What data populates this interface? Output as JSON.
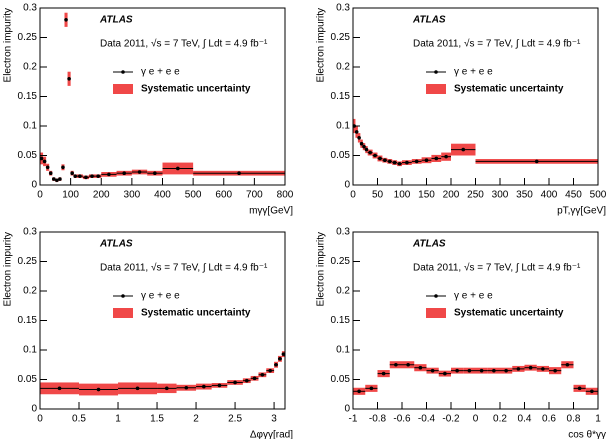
{
  "chart_data": [
    {
      "type": "histogram",
      "ylabel": "Electron impurity",
      "xlabel": "mγγ[GeV]",
      "annotations": [
        "ATLAS",
        "Data 2011, √s = 7 TeV, ∫ Ldt = 4.9 fb⁻¹"
      ],
      "bins": [
        0,
        10,
        20,
        30,
        40,
        50,
        60,
        70,
        80,
        90,
        100,
        110,
        120,
        140,
        160,
        180,
        200,
        250,
        300,
        350,
        400,
        500,
        800
      ],
      "series": [
        {
          "name": "γ e + e e",
          "color": "#000000",
          "values": [
            0.045,
            0.04,
            0.03,
            0.02,
            0.01,
            0.008,
            0.01,
            0.03,
            0.28,
            0.18,
            0.02,
            0.015,
            0.015,
            0.013,
            0.015,
            0.015,
            0.018,
            0.02,
            0.022,
            0.02,
            0.028,
            0.02
          ]
        }
      ],
      "band": {
        "name": "Systematic uncertainty",
        "color": "#f04848",
        "errors": [
          0.01,
          0.008,
          0.006,
          0.004,
          0.003,
          0.003,
          0.003,
          0.005,
          0.012,
          0.012,
          0.004,
          0.003,
          0.003,
          0.003,
          0.003,
          0.003,
          0.004,
          0.004,
          0.004,
          0.004,
          0.01,
          0.004
        ]
      },
      "xlim": [
        0,
        800
      ],
      "xticks": [
        0,
        100,
        200,
        300,
        400,
        500,
        600,
        700,
        800
      ],
      "ylim": [
        0,
        0.3
      ],
      "yticks": [
        0,
        0.05,
        0.1,
        0.15,
        0.2,
        0.25,
        0.3
      ]
    },
    {
      "type": "histogram",
      "ylabel": "Electron impurity",
      "xlabel": "pT,γγ[GeV]",
      "annotations": [
        "ATLAS",
        "Data 2011, √s = 7 TeV, ∫ Ldt = 4.9 fb⁻¹"
      ],
      "bins": [
        0,
        5,
        10,
        15,
        20,
        25,
        30,
        40,
        50,
        60,
        70,
        80,
        90,
        100,
        120,
        140,
        160,
        180,
        200,
        250,
        500
      ],
      "series": [
        {
          "name": "γ e + e e",
          "color": "#000000",
          "values": [
            0.1,
            0.09,
            0.08,
            0.07,
            0.065,
            0.06,
            0.055,
            0.05,
            0.045,
            0.042,
            0.04,
            0.038,
            0.036,
            0.038,
            0.04,
            0.042,
            0.045,
            0.048,
            0.06,
            0.04
          ]
        }
      ],
      "band": {
        "name": "Systematic uncertainty",
        "color": "#f04848",
        "errors": [
          0.012,
          0.01,
          0.008,
          0.007,
          0.006,
          0.006,
          0.005,
          0.005,
          0.005,
          0.004,
          0.004,
          0.004,
          0.004,
          0.004,
          0.004,
          0.005,
          0.006,
          0.007,
          0.01,
          0.004
        ]
      },
      "xlim": [
        0,
        500
      ],
      "xticks": [
        0,
        50,
        100,
        150,
        200,
        250,
        300,
        350,
        400,
        450,
        500
      ],
      "ylim": [
        0,
        0.3
      ],
      "yticks": [
        0,
        0.05,
        0.1,
        0.15,
        0.2,
        0.25,
        0.3
      ]
    },
    {
      "type": "histogram",
      "ylabel": "Electron impurity",
      "xlabel": "Δφγγ[rad]",
      "annotations": [
        "ATLAS",
        "Data 2011, √s = 7 TeV, ∫ Ldt = 4.9 fb⁻¹"
      ],
      "bins": [
        0,
        0.5,
        1,
        1.5,
        1.75,
        2,
        2.2,
        2.4,
        2.6,
        2.7,
        2.8,
        2.9,
        3.0,
        3.05,
        3.1,
        3.14
      ],
      "series": [
        {
          "name": "γ e + e e",
          "color": "#000000",
          "values": [
            0.035,
            0.033,
            0.035,
            0.035,
            0.036,
            0.038,
            0.04,
            0.045,
            0.048,
            0.052,
            0.058,
            0.065,
            0.075,
            0.085,
            0.093
          ]
        }
      ],
      "band": {
        "name": "Systematic uncertainty",
        "color": "#f04848",
        "errors": [
          0.01,
          0.01,
          0.01,
          0.008,
          0.005,
          0.005,
          0.004,
          0.004,
          0.004,
          0.004,
          0.004,
          0.004,
          0.005,
          0.005,
          0.005
        ]
      },
      "xlim": [
        0,
        3.14
      ],
      "xticks": [
        0,
        0.5,
        1,
        1.5,
        2,
        2.5,
        3
      ],
      "ylim": [
        0,
        0.3
      ],
      "yticks": [
        0,
        0.05,
        0.1,
        0.15,
        0.2,
        0.25,
        0.3
      ]
    },
    {
      "type": "histogram",
      "ylabel": "Electron impurity",
      "xlabel": "cos θ*γγ",
      "annotations": [
        "ATLAS",
        "Data 2011, √s = 7 TeV, ∫ Ldt = 4.9 fb⁻¹"
      ],
      "bins": [
        -1,
        -0.9,
        -0.8,
        -0.7,
        -0.6,
        -0.5,
        -0.4,
        -0.3,
        -0.2,
        -0.1,
        0,
        0.1,
        0.2,
        0.3,
        0.4,
        0.5,
        0.6,
        0.7,
        0.8,
        0.9,
        1
      ],
      "series": [
        {
          "name": "γ e + e e",
          "color": "#000000",
          "values": [
            0.03,
            0.035,
            0.06,
            0.075,
            0.075,
            0.07,
            0.065,
            0.06,
            0.065,
            0.065,
            0.065,
            0.065,
            0.065,
            0.068,
            0.07,
            0.068,
            0.065,
            0.075,
            0.035,
            0.03
          ]
        }
      ],
      "band": {
        "name": "Systematic uncertainty",
        "color": "#f04848",
        "errors": [
          0.006,
          0.006,
          0.006,
          0.006,
          0.006,
          0.006,
          0.005,
          0.005,
          0.005,
          0.005,
          0.005,
          0.005,
          0.005,
          0.005,
          0.005,
          0.005,
          0.006,
          0.006,
          0.006,
          0.006
        ]
      },
      "xlim": [
        -1,
        1
      ],
      "xticks": [
        -1,
        -0.8,
        -0.6,
        -0.4,
        -0.2,
        0,
        0.2,
        0.4,
        0.6,
        0.8,
        1
      ],
      "ylim": [
        0,
        0.3
      ],
      "yticks": [
        0,
        0.05,
        0.1,
        0.15,
        0.2,
        0.25,
        0.3
      ]
    }
  ]
}
